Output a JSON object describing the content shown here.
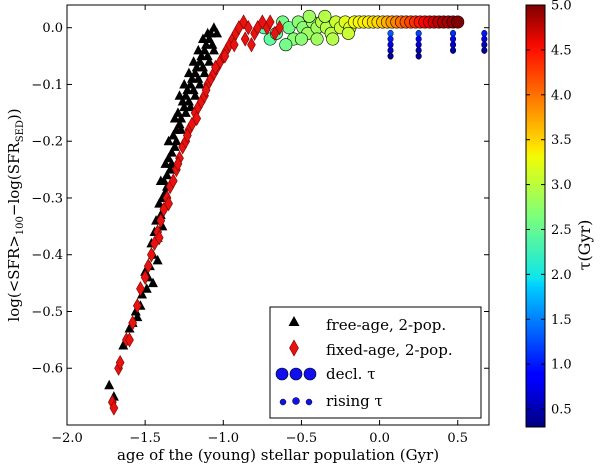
{
  "chart_data": {
    "type": "scatter",
    "title": "",
    "xlabel": "age of the (young) stellar population (Gyr)",
    "ylabel_parts": {
      "pre": "log(<SFR>",
      "sub1": "100",
      "mid": "−log(SFR",
      "sub2": "SED",
      "post": "))"
    },
    "xlim": [
      -2.0,
      0.7
    ],
    "ylim": [
      -0.7,
      0.04
    ],
    "x_ticks": [
      -2.0,
      -1.5,
      -1.0,
      -0.5,
      0.0,
      0.5
    ],
    "x_tick_labels": [
      "−2.0",
      "−1.5",
      "−1.0",
      "−0.5",
      "0.0",
      "0.5"
    ],
    "y_ticks": [
      0.0,
      -0.1,
      -0.2,
      -0.3,
      -0.4,
      -0.5,
      -0.6
    ],
    "y_tick_labels": [
      "0.0",
      "−0.1",
      "−0.2",
      "−0.3",
      "−0.4",
      "−0.5",
      "−0.6"
    ],
    "colorbar": {
      "label": "τ(Gyr)",
      "range": [
        0.3,
        5.0
      ],
      "ticks": [
        0.5,
        1.0,
        1.5,
        2.0,
        2.5,
        3.0,
        3.5,
        4.0,
        4.5,
        5.0
      ],
      "tick_labels": [
        "0.5",
        "1.0",
        "1.5",
        "2.0",
        "2.5",
        "3.0",
        "3.5",
        "4.0",
        "4.5",
        "5.0"
      ],
      "colormap": "jet"
    },
    "legend": {
      "position": "lower-right",
      "entries": [
        {
          "label": "free-age, 2-pop.",
          "marker": "triangle",
          "color": "#000000"
        },
        {
          "label": "fixed-age, 2-pop.",
          "marker": "diamond",
          "color": "#e8130f"
        },
        {
          "label": "decl. τ",
          "marker": "circle-large",
          "color": "#1010ee"
        },
        {
          "label": "rising τ",
          "marker": "circle-small",
          "color": "#1010ee"
        }
      ]
    },
    "series": [
      {
        "name": "free-age, 2-pop.",
        "marker": "triangle",
        "color": "#000000",
        "points": [
          [
            -1.73,
            -0.63
          ],
          [
            -1.7,
            -0.65
          ],
          [
            -1.64,
            -0.56
          ],
          [
            -1.56,
            -0.5
          ],
          [
            -1.53,
            -0.49
          ],
          [
            -1.55,
            -0.51
          ],
          [
            -1.52,
            -0.47
          ],
          [
            -1.49,
            -0.46
          ],
          [
            -1.48,
            -0.44
          ],
          [
            -1.5,
            -0.43
          ],
          [
            -1.47,
            -0.42
          ],
          [
            -1.45,
            -0.4
          ],
          [
            -1.46,
            -0.38
          ],
          [
            -1.44,
            -0.36
          ],
          [
            -1.42,
            -0.37
          ],
          [
            -1.43,
            -0.34
          ],
          [
            -1.4,
            -0.33
          ],
          [
            -1.41,
            -0.31
          ],
          [
            -1.39,
            -0.3
          ],
          [
            -1.37,
            -0.29
          ],
          [
            -1.38,
            -0.27
          ],
          [
            -1.36,
            -0.26
          ],
          [
            -1.34,
            -0.25
          ],
          [
            -1.35,
            -0.23
          ],
          [
            -1.33,
            -0.22
          ],
          [
            -1.31,
            -0.21
          ],
          [
            -1.32,
            -0.19
          ],
          [
            -1.3,
            -0.18
          ],
          [
            -1.28,
            -0.17
          ],
          [
            -1.29,
            -0.15
          ],
          [
            -1.27,
            -0.16
          ],
          [
            -1.25,
            -0.14
          ],
          [
            -1.26,
            -0.13
          ],
          [
            -1.24,
            -0.12
          ],
          [
            -1.22,
            -0.13
          ],
          [
            -1.23,
            -0.11
          ],
          [
            -1.21,
            -0.1
          ],
          [
            -1.19,
            -0.11
          ],
          [
            -1.2,
            -0.09
          ],
          [
            -1.18,
            -0.08
          ],
          [
            -1.16,
            -0.09
          ],
          [
            -1.17,
            -0.07
          ],
          [
            -1.15,
            -0.06
          ],
          [
            -1.13,
            -0.07
          ],
          [
            -1.14,
            -0.05
          ],
          [
            -1.12,
            -0.04
          ],
          [
            -1.1,
            -0.05
          ],
          [
            -1.11,
            -0.03
          ],
          [
            -1.09,
            -0.02
          ],
          [
            -1.07,
            -0.03
          ],
          [
            -1.08,
            -0.01
          ],
          [
            -1.06,
            0.0
          ],
          [
            -1.04,
            -0.01
          ],
          [
            -1.36,
            -0.28
          ],
          [
            -1.33,
            -0.24
          ],
          [
            -1.3,
            -0.2
          ],
          [
            -1.27,
            -0.18
          ],
          [
            -1.24,
            -0.15
          ],
          [
            -1.21,
            -0.14
          ],
          [
            -1.18,
            -0.12
          ],
          [
            -1.15,
            -0.1
          ],
          [
            -1.12,
            -0.08
          ],
          [
            -1.09,
            -0.06
          ],
          [
            -1.06,
            -0.04
          ],
          [
            -1.39,
            -0.35
          ],
          [
            -1.42,
            -0.41
          ],
          [
            -1.45,
            -0.45
          ],
          [
            -1.6,
            -0.53
          ],
          [
            -1.58,
            -0.52
          ],
          [
            -1.35,
            -0.2
          ],
          [
            -1.31,
            -0.16
          ],
          [
            -1.28,
            -0.12
          ],
          [
            -1.25,
            -0.1
          ],
          [
            -1.22,
            -0.08
          ],
          [
            -1.19,
            -0.06
          ],
          [
            -1.16,
            -0.04
          ],
          [
            -1.13,
            -0.02
          ],
          [
            -1.1,
            -0.01
          ],
          [
            -1.4,
            -0.27
          ],
          [
            -1.37,
            -0.24
          ]
        ]
      },
      {
        "name": "fixed-age, 2-pop.",
        "marker": "diamond",
        "color": "#e8130f",
        "points": [
          [
            -1.71,
            -0.66
          ],
          [
            -1.7,
            -0.67
          ],
          [
            -1.67,
            -0.6
          ],
          [
            -1.66,
            -0.59
          ],
          [
            -1.62,
            -0.55
          ],
          [
            -1.6,
            -0.55
          ],
          [
            -1.58,
            -0.52
          ],
          [
            -1.55,
            -0.49
          ],
          [
            -1.53,
            -0.46
          ],
          [
            -1.5,
            -0.44
          ],
          [
            -1.48,
            -0.42
          ],
          [
            -1.46,
            -0.4
          ],
          [
            -1.44,
            -0.38
          ],
          [
            -1.42,
            -0.36
          ],
          [
            -1.4,
            -0.34
          ],
          [
            -1.38,
            -0.32
          ],
          [
            -1.36,
            -0.3
          ],
          [
            -1.34,
            -0.28
          ],
          [
            -1.32,
            -0.27
          ],
          [
            -1.3,
            -0.25
          ],
          [
            -1.28,
            -0.23
          ],
          [
            -1.26,
            -0.21
          ],
          [
            -1.24,
            -0.2
          ],
          [
            -1.22,
            -0.18
          ],
          [
            -1.2,
            -0.17
          ],
          [
            -1.18,
            -0.15
          ],
          [
            -1.16,
            -0.14
          ],
          [
            -1.14,
            -0.13
          ],
          [
            -1.12,
            -0.12
          ],
          [
            -1.1,
            -0.1
          ],
          [
            -1.08,
            -0.09
          ],
          [
            -1.06,
            -0.08
          ],
          [
            -1.04,
            -0.07
          ],
          [
            -1.02,
            -0.06
          ],
          [
            -1.0,
            -0.05
          ],
          [
            -0.98,
            -0.04
          ],
          [
            -0.96,
            -0.03
          ],
          [
            -0.94,
            -0.02
          ],
          [
            -0.92,
            -0.01
          ],
          [
            -0.9,
            0.0
          ],
          [
            -0.87,
            0.01
          ],
          [
            -0.84,
            0.0
          ],
          [
            -0.8,
            -0.01
          ],
          [
            -0.78,
            0.0
          ],
          [
            -0.75,
            0.01
          ],
          [
            -0.72,
            0.0
          ],
          [
            -0.7,
            0.01
          ],
          [
            -0.67,
            -0.01
          ],
          [
            -0.64,
            0.0
          ],
          [
            -1.41,
            -0.37
          ],
          [
            -1.35,
            -0.31
          ],
          [
            -1.29,
            -0.24
          ],
          [
            -1.23,
            -0.19
          ],
          [
            -1.17,
            -0.16
          ],
          [
            -1.11,
            -0.11
          ],
          [
            -1.05,
            -0.07
          ],
          [
            -0.99,
            -0.05
          ],
          [
            -0.93,
            -0.03
          ],
          [
            -0.86,
            -0.02
          ],
          [
            -0.82,
            -0.03
          ]
        ]
      },
      {
        "name": "decl. τ",
        "marker": "circle",
        "size": "large",
        "note": "colour encodes tau (Gyr)",
        "points": [
          [
            -0.74,
            0.0,
            2.4
          ],
          [
            -0.7,
            -0.02,
            2.5
          ],
          [
            -0.66,
            -0.01,
            2.5
          ],
          [
            -0.62,
            0.01,
            2.6
          ],
          [
            -0.58,
            0.0,
            2.6
          ],
          [
            -0.55,
            -0.02,
            2.7
          ],
          [
            -0.52,
            0.01,
            2.7
          ],
          [
            -0.49,
            0.0,
            2.7
          ],
          [
            -0.46,
            -0.01,
            2.8
          ],
          [
            -0.43,
            0.01,
            2.8
          ],
          [
            -0.4,
            0.0,
            2.8
          ],
          [
            -0.37,
            0.01,
            2.9
          ],
          [
            -0.34,
            0.0,
            2.9
          ],
          [
            -0.31,
            -0.01,
            2.9
          ],
          [
            -0.28,
            0.01,
            3.0
          ],
          [
            -0.25,
            0.0,
            3.0
          ],
          [
            -0.22,
            0.01,
            3.1
          ],
          [
            -0.19,
            0.0,
            3.1
          ],
          [
            -0.16,
            0.01,
            3.2
          ],
          [
            -0.13,
            0.01,
            3.2
          ],
          [
            -0.1,
            0.01,
            3.3
          ],
          [
            -0.07,
            0.01,
            3.3
          ],
          [
            -0.04,
            0.01,
            3.4
          ],
          [
            -0.01,
            0.01,
            3.4
          ],
          [
            0.02,
            0.01,
            3.5
          ],
          [
            0.05,
            0.01,
            3.6
          ],
          [
            0.08,
            0.01,
            3.7
          ],
          [
            0.11,
            0.01,
            3.8
          ],
          [
            0.14,
            0.01,
            3.9
          ],
          [
            0.17,
            0.01,
            4.0
          ],
          [
            0.2,
            0.01,
            4.1
          ],
          [
            0.23,
            0.01,
            4.2
          ],
          [
            0.26,
            0.01,
            4.3
          ],
          [
            0.29,
            0.01,
            4.4
          ],
          [
            0.32,
            0.01,
            4.5
          ],
          [
            0.35,
            0.01,
            4.6
          ],
          [
            0.38,
            0.01,
            4.7
          ],
          [
            0.41,
            0.01,
            4.8
          ],
          [
            0.44,
            0.01,
            4.8
          ],
          [
            0.47,
            0.01,
            4.9
          ],
          [
            0.5,
            0.01,
            5.0
          ],
          [
            -0.6,
            -0.03,
            2.6
          ],
          [
            -0.5,
            -0.02,
            2.7
          ],
          [
            -0.4,
            -0.02,
            2.8
          ],
          [
            -0.3,
            -0.02,
            2.9
          ],
          [
            -0.2,
            -0.01,
            3.0
          ],
          [
            -0.45,
            0.02,
            2.8
          ],
          [
            -0.35,
            0.02,
            2.9
          ]
        ]
      },
      {
        "name": "rising τ",
        "marker": "circle",
        "size": "small",
        "note": "colour encodes tau (Gyr)",
        "points": [
          [
            0.07,
            -0.01,
            1.3
          ],
          [
            0.07,
            -0.02,
            1.0
          ],
          [
            0.07,
            -0.03,
            0.8
          ],
          [
            0.07,
            -0.04,
            0.6
          ],
          [
            0.07,
            -0.05,
            0.4
          ],
          [
            0.25,
            -0.01,
            1.2
          ],
          [
            0.25,
            -0.02,
            0.9
          ],
          [
            0.25,
            -0.03,
            0.7
          ],
          [
            0.25,
            -0.04,
            0.5
          ],
          [
            0.25,
            -0.05,
            0.4
          ],
          [
            0.47,
            -0.01,
            1.1
          ],
          [
            0.47,
            -0.02,
            0.9
          ],
          [
            0.47,
            -0.03,
            0.7
          ],
          [
            0.47,
            -0.04,
            0.5
          ],
          [
            0.67,
            -0.01,
            1.0
          ],
          [
            0.67,
            -0.02,
            0.8
          ],
          [
            0.67,
            -0.03,
            0.6
          ],
          [
            0.67,
            -0.04,
            0.4
          ]
        ]
      }
    ]
  }
}
